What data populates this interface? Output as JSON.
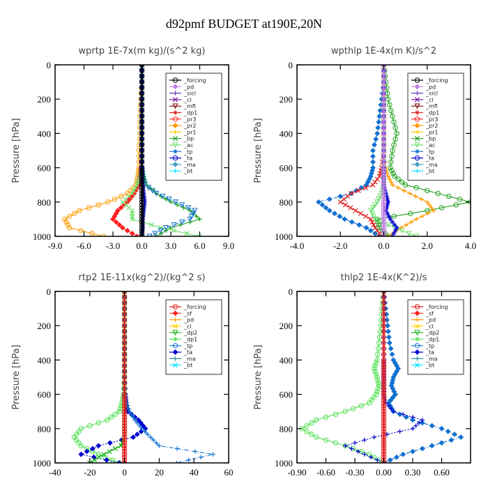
{
  "figure_title": "d92pmf  BUDGET at190E,20N",
  "colors": {
    "forcing": "#000000",
    "pd": "#c080e0",
    "sicl": "#6a3fbf",
    "cl": "#7a1fa0",
    "mfl": "#7a0000",
    "dp1": "#e02020",
    "pr3": "#ff2020",
    "pr2": "#ff9a00",
    "pr1": "#f5c800",
    "bp": "#20a020",
    "ac": "#70e070",
    "tp": "#1070d0",
    "ta": "#0000d0",
    "ma": "#40a0c0",
    "bt": "#00e0ff",
    "sf": "#ff2020",
    "cl2": "#ffd000",
    "dp2": "#10b010",
    "dp1g": "#50e050",
    "ma2": "#3090a0"
  },
  "chart_data": [
    {
      "type": "line",
      "title": "wprtp  1E-7x(m kg)/(s^2 kg)",
      "ylabel": "Pressure [hPa]",
      "xlim": [
        -9,
        9
      ],
      "ylim": [
        1000,
        0
      ],
      "xticks": [
        "-9.0",
        "-6.0",
        "-3.0",
        "0.0",
        "3.0",
        "6.0",
        "9.0"
      ],
      "yticks": [
        "0",
        "200",
        "400",
        "600",
        "800",
        "1000"
      ],
      "legend": [
        "_forcing",
        "_pd",
        "_sicl",
        "_cl",
        "_mfl",
        "_dp1",
        "_pr3",
        "_pr2",
        "_pr1",
        "_bp",
        "_ac",
        "_tp",
        "_ta",
        "_ma",
        "_bt"
      ],
      "legend_colors": [
        "forcing",
        "pd",
        "sicl",
        "cl",
        "mfl",
        "dp1",
        "pr3",
        "pr2",
        "pr1",
        "bp",
        "ac",
        "tp",
        "ta",
        "ma",
        "bt"
      ],
      "p": [
        0,
        100,
        200,
        300,
        400,
        500,
        600,
        650,
        700,
        750,
        800,
        850,
        900,
        950,
        1000
      ],
      "series": [
        {
          "name": "_pr2",
          "color": "pr2",
          "x": [
            0,
            0,
            -0.1,
            -0.2,
            -0.2,
            -0.3,
            -0.3,
            -0.4,
            -0.6,
            -1.5,
            -3.5,
            -6.5,
            -8.0,
            -7.5,
            -4.0
          ]
        },
        {
          "name": "_pr3",
          "color": "pr3",
          "x": [
            0,
            0,
            0,
            0,
            0,
            0,
            -0.1,
            -0.2,
            -0.3,
            -0.8,
            -1.5,
            -2.5,
            -3.0,
            -2.0,
            -0.5
          ]
        },
        {
          "name": "_bp",
          "color": "bp",
          "x": [
            0,
            0,
            0,
            0,
            0,
            0,
            0,
            0.2,
            0.5,
            1.5,
            3.0,
            5.0,
            6.0,
            3.0,
            1.5
          ]
        },
        {
          "name": "_ac",
          "color": "ac",
          "x": [
            0,
            0,
            0,
            0,
            0,
            0,
            0,
            -0.2,
            -0.5,
            -1.0,
            -2.0,
            -1.0,
            -1.0,
            2.0,
            6.0
          ]
        },
        {
          "name": "_tp",
          "color": "tp",
          "x": [
            0,
            0,
            0,
            0,
            0,
            0,
            0,
            0.1,
            0.3,
            1.5,
            3.5,
            5.5,
            5.0,
            2.5,
            0.8
          ]
        },
        {
          "name": "_ta",
          "color": "ta",
          "x": [
            0,
            0,
            0,
            0,
            0,
            0,
            0,
            0,
            0.1,
            0.2,
            0.3,
            0.2,
            0.1,
            0.1,
            0
          ]
        },
        {
          "name": "_forcing",
          "color": "forcing",
          "x": [
            0,
            0,
            0,
            0,
            0,
            0,
            0,
            0,
            0,
            0,
            0,
            0,
            0,
            0,
            0
          ]
        }
      ]
    },
    {
      "type": "line",
      "title": "wpthlp  1E-4x(m K)/s^2",
      "ylabel": "Pressure [hPa]",
      "xlim": [
        -4,
        4
      ],
      "ylim": [
        1000,
        0
      ],
      "xticks": [
        "-4.0",
        "-2.0",
        "0.0",
        "2.0",
        "4.0"
      ],
      "yticks": [
        "0",
        "200",
        "400",
        "600",
        "800",
        "1000"
      ],
      "legend": [
        "_forcing",
        "_pd",
        "_sicl",
        "_cl",
        "_mfl",
        "_dp1",
        "_pr3",
        "_pr2",
        "_pr1",
        "_bp",
        "_ac",
        "_tp",
        "_ta",
        "_ma",
        "_bt"
      ],
      "legend_colors": [
        "forcing",
        "pd",
        "sicl",
        "cl",
        "mfl",
        "dp1",
        "pr3",
        "pr2",
        "pr1",
        "bp",
        "ac",
        "tp",
        "ta",
        "ma",
        "bt"
      ],
      "p": [
        0,
        100,
        200,
        300,
        400,
        500,
        600,
        650,
        700,
        750,
        800,
        850,
        900,
        950,
        1000
      ],
      "series": [
        {
          "name": "_bp",
          "color": "bp",
          "x": [
            0,
            0.1,
            0.2,
            0.4,
            0.6,
            0.4,
            0.3,
            0.5,
            1.0,
            2.5,
            4.0,
            2.0,
            -0.3,
            -0.2,
            0.2
          ]
        },
        {
          "name": "_tp",
          "color": "tp",
          "x": [
            0,
            0,
            -0.1,
            -0.2,
            -0.3,
            -0.5,
            -0.5,
            -0.6,
            -0.8,
            -1.5,
            -3.0,
            -2.5,
            -1.8,
            -0.8,
            -0.2
          ]
        },
        {
          "name": "_pr2",
          "color": "pr2",
          "x": [
            0,
            0,
            0,
            0,
            0,
            0,
            0.1,
            0.2,
            0.4,
            1.2,
            2.0,
            2.3,
            1.5,
            0.8,
            0.2
          ]
        },
        {
          "name": "_dp1",
          "color": "dp1",
          "x": [
            0,
            0,
            0,
            0,
            0,
            0,
            -0.1,
            -0.2,
            -0.5,
            -1.5,
            -2.0,
            -1.3,
            -0.6,
            -0.4,
            -0.1
          ]
        },
        {
          "name": "_ac",
          "color": "ac",
          "x": [
            0,
            0,
            0,
            0,
            0,
            0,
            0,
            0,
            0,
            -0.1,
            -0.3,
            -0.6,
            -0.4,
            0.5,
            1.5
          ]
        },
        {
          "name": "_ta",
          "color": "ta",
          "x": [
            0,
            0,
            0,
            0,
            0,
            0,
            0,
            0,
            0,
            0.1,
            0.2,
            0.1,
            0.3,
            0.6,
            0.4
          ]
        },
        {
          "name": "_pd",
          "color": "pd",
          "x": [
            0,
            0,
            0,
            0,
            0,
            0,
            0,
            0,
            0,
            0,
            0,
            0,
            0,
            0,
            0
          ]
        }
      ]
    },
    {
      "type": "line",
      "title": "rtp2  1E-11x(kg^2)/(kg^2 s)",
      "ylabel": "Pressure [hPa]",
      "xlim": [
        -40,
        60
      ],
      "ylim": [
        1000,
        0
      ],
      "xticks": [
        "-40",
        "-20",
        "0",
        "20",
        "40",
        "60"
      ],
      "yticks": [
        "0",
        "200",
        "400",
        "600",
        "800",
        "1000"
      ],
      "legend": [
        "_forcing",
        "_sf",
        "_pd",
        "_cl",
        "_dp2",
        "_dp1",
        "_tp",
        "_ta",
        "_ma",
        "_bt"
      ],
      "legend_colors": [
        "dp1",
        "sf",
        "pr2",
        "cl2",
        "dp2",
        "dp1g",
        "tp",
        "ta",
        "ma2",
        "bt"
      ],
      "p": [
        0,
        100,
        200,
        300,
        400,
        500,
        600,
        650,
        700,
        750,
        800,
        850,
        900,
        950,
        1000
      ],
      "series": [
        {
          "name": "_dp1",
          "color": "dp1g",
          "x": [
            0,
            0,
            0,
            0,
            0,
            0,
            -0.5,
            -1.5,
            -3,
            -10,
            -25,
            -29,
            -25,
            -15,
            -3
          ]
        },
        {
          "name": "_ta",
          "color": "ta",
          "x": [
            0,
            0,
            0,
            0,
            0,
            0,
            0.5,
            1,
            2,
            8,
            12,
            5,
            -15,
            -25,
            -3
          ]
        },
        {
          "name": "_tp",
          "color": "tp",
          "x": [
            0,
            0,
            0,
            0,
            0,
            0,
            0.5,
            1,
            3,
            6,
            10,
            15,
            20,
            51,
            30
          ]
        },
        {
          "name": "_dp2",
          "color": "dp2",
          "x": [
            0,
            0,
            0,
            0,
            0,
            0,
            0,
            0,
            0,
            0,
            0,
            0,
            -2,
            -12,
            -20
          ]
        },
        {
          "name": "_forcing",
          "color": "dp1",
          "x": [
            0,
            0,
            0,
            0,
            0,
            0,
            0,
            0,
            0,
            0,
            0,
            0,
            0,
            0,
            0
          ]
        }
      ]
    },
    {
      "type": "line",
      "title": "thlp2  1E-4x(K^2)/s",
      "ylabel": "Pressure [hPa]",
      "xlim": [
        -0.9,
        0.9
      ],
      "ylim": [
        1000,
        0
      ],
      "xticks": [
        "-0.90",
        "-0.60",
        "-0.30",
        "0.00",
        "0.30",
        "0.60"
      ],
      "yticks": [
        "0",
        "200",
        "400",
        "600",
        "800",
        "1000"
      ],
      "legend": [
        "_forcing",
        "_sf",
        "_pd",
        "_cl",
        "_dp2",
        "_dp1",
        "_tp",
        "_ta",
        "_ma",
        "_bt"
      ],
      "legend_colors": [
        "dp1",
        "sf",
        "pr2",
        "cl2",
        "dp2",
        "dp1g",
        "tp",
        "ta",
        "ma2",
        "bt"
      ],
      "p": [
        0,
        100,
        200,
        300,
        400,
        450,
        500,
        550,
        600,
        650,
        700,
        750,
        800,
        850,
        900,
        950,
        1000
      ],
      "series": [
        {
          "name": "_dp1",
          "color": "dp1g",
          "x": [
            0,
            -0.02,
            -0.03,
            -0.05,
            -0.07,
            -0.1,
            -0.07,
            -0.05,
            -0.08,
            -0.15,
            -0.4,
            -0.7,
            -0.85,
            -0.7,
            -0.4,
            -0.15,
            0
          ]
        },
        {
          "name": "_tp",
          "color": "tp",
          "x": [
            0,
            0.02,
            0.04,
            0.06,
            0.1,
            0.15,
            0.1,
            0.08,
            0.12,
            0.05,
            0.1,
            0.3,
            0.6,
            0.8,
            0.5,
            0.2,
            0
          ]
        },
        {
          "name": "_ta",
          "color": "ta",
          "x": [
            0,
            0,
            0,
            0,
            0,
            0,
            0,
            0,
            0,
            0.02,
            0.1,
            0.4,
            0.3,
            -0.1,
            -0.4,
            -0.2,
            0
          ]
        },
        {
          "name": "_forcing",
          "color": "dp1",
          "x": [
            0,
            0,
            0,
            0,
            0,
            0,
            0,
            0,
            0,
            0,
            0,
            0,
            0,
            0,
            0,
            0,
            0
          ]
        }
      ]
    }
  ]
}
